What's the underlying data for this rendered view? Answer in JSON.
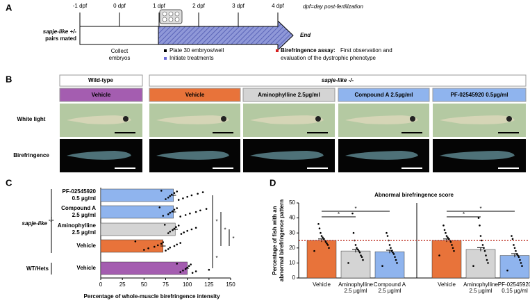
{
  "panel_labels": [
    "A",
    "B",
    "C",
    "D"
  ],
  "timeline": {
    "ticks": [
      "-1 dpf",
      "0 dpf",
      "1 dpf",
      "2 dpf",
      "3 dpf",
      "4 dpf"
    ],
    "last_tick_color": "#d62020",
    "note": "dpf=day post-fertilization",
    "start_label": [
      "sapje-like +/-",
      "pairs mated"
    ],
    "end": "End",
    "collect": [
      "Collect",
      "embryos"
    ],
    "bullets": [
      {
        "text": "Plate 30 embryos/well",
        "color": "#000000"
      },
      {
        "text": "Initiate treatments",
        "color": "#6a6ad8"
      }
    ],
    "assay": {
      "bold": "Birefringence assay:",
      "rest": [
        "First observation and",
        "evaluation of the dystrophic phenotype"
      ],
      "color": "#d62020"
    }
  },
  "image_grid": {
    "groups": [
      "Wild-type",
      "sapje-like -/-"
    ],
    "columns": [
      {
        "label": "Vehicle",
        "color": "#a45db0"
      },
      {
        "label": "Vehicle",
        "color": "#e8733a"
      },
      {
        "label": "Aminophylline 2.5µg/ml",
        "color": "#d4d4d4"
      },
      {
        "label": "Compound A 2.5µg/ml",
        "color": "#8fb4ee"
      },
      {
        "label": "PF-02545920 0.5µg/ml",
        "color": "#8fb4ee"
      }
    ],
    "rows": [
      "White light",
      "Birefringence"
    ]
  },
  "chart_data": [
    {
      "type": "hbar",
      "categories": [
        [
          "PF-02545920",
          "0.5 µg/ml"
        ],
        [
          "Compound A",
          "2.5 µg/ml"
        ],
        [
          "Aminophylline",
          "2.5 µg/ml"
        ],
        [
          "Vehicle"
        ],
        [
          "Vehicle"
        ]
      ],
      "values": [
        84,
        84,
        86,
        72,
        100
      ],
      "errors": [
        3,
        3,
        3,
        3,
        2
      ],
      "colors": [
        "#8fb4ee",
        "#8fb4ee",
        "#d4d4d4",
        "#e8733a",
        "#a45db0"
      ],
      "points": [
        [
          70,
          75,
          78,
          80,
          82,
          85,
          88,
          90,
          95,
          100,
          105,
          112,
          118
        ],
        [
          68,
          72,
          78,
          80,
          83,
          85,
          88,
          92,
          98,
          103,
          110,
          115,
          122
        ],
        [
          74,
          78,
          80,
          83,
          85,
          87,
          90,
          93,
          96,
          100,
          105,
          110
        ],
        [
          40,
          50,
          55,
          62,
          66,
          70,
          72,
          75,
          78,
          80,
          85,
          88,
          92
        ],
        [
          88,
          92,
          95,
          98,
          100,
          102,
          104,
          106,
          110,
          125
        ]
      ],
      "groups": [
        {
          "label": "sapje-like",
          "sup": "-/-"
        },
        {
          "label": "WT/Hets"
        }
      ],
      "comparisons": [
        {
          "from": 3,
          "to": 0,
          "label": "*"
        },
        {
          "from": 3,
          "to": 1,
          "label": "*"
        },
        {
          "from": 3,
          "to": 2,
          "label": "*"
        },
        {
          "from": 4,
          "to": 3,
          "label": "*"
        }
      ],
      "xlim": [
        0,
        150
      ],
      "xticks": [
        0,
        25,
        50,
        75,
        100,
        125,
        150
      ],
      "xlabel": "Percentage of whole-muscle birefringence intensity"
    },
    {
      "type": "bar",
      "title": "Abnormal birefringence score",
      "ylabel": [
        "Percentage of fish with an",
        "abnormal birefringence pattern"
      ],
      "categories": [
        [
          "Vehicle"
        ],
        [
          "Aminophylline",
          "2.5 µg/ml"
        ],
        [
          "Compound A",
          "2.5 µg/ml"
        ],
        [
          "Vehicle"
        ],
        [
          "Aminophylline",
          "2.5 µg/ml"
        ],
        [
          "PF-02545920",
          "0.15 µg/ml"
        ]
      ],
      "values": [
        25,
        18,
        17.5,
        25,
        19,
        15
      ],
      "errors": [
        1,
        1,
        1,
        1,
        1.2,
        1.2
      ],
      "colors": [
        "#e8733a",
        "#d4d4d4",
        "#8fb4ee",
        "#e8733a",
        "#d4d4d4",
        "#8fb4ee"
      ],
      "points": [
        [
          18,
          20,
          22,
          23,
          24,
          25,
          26,
          27,
          28,
          30,
          33,
          36
        ],
        [
          10,
          12,
          14,
          15,
          17,
          18,
          19,
          20,
          22,
          25,
          30,
          43
        ],
        [
          8,
          10,
          12,
          14,
          16,
          17,
          18,
          20,
          22,
          25,
          28,
          30
        ],
        [
          15,
          18,
          20,
          22,
          24,
          25,
          26,
          27,
          28,
          30,
          32,
          35
        ],
        [
          8,
          10,
          12,
          15,
          18,
          20,
          22,
          25,
          28,
          35,
          40
        ],
        [
          5,
          8,
          10,
          12,
          14,
          15,
          16,
          18,
          20,
          22,
          26,
          28
        ]
      ],
      "comparisons": [
        {
          "from": 0,
          "to": 1,
          "label": "*"
        },
        {
          "from": 0,
          "to": 2,
          "label": "*"
        },
        {
          "from": 3,
          "to": 4,
          "label": "*"
        },
        {
          "from": 3,
          "to": 5,
          "label": "*"
        }
      ],
      "reference_line": 25,
      "reference_color": "#c0392b",
      "ylim": [
        0,
        50
      ],
      "yticks": [
        0,
        10,
        20,
        30,
        40,
        50
      ]
    }
  ]
}
